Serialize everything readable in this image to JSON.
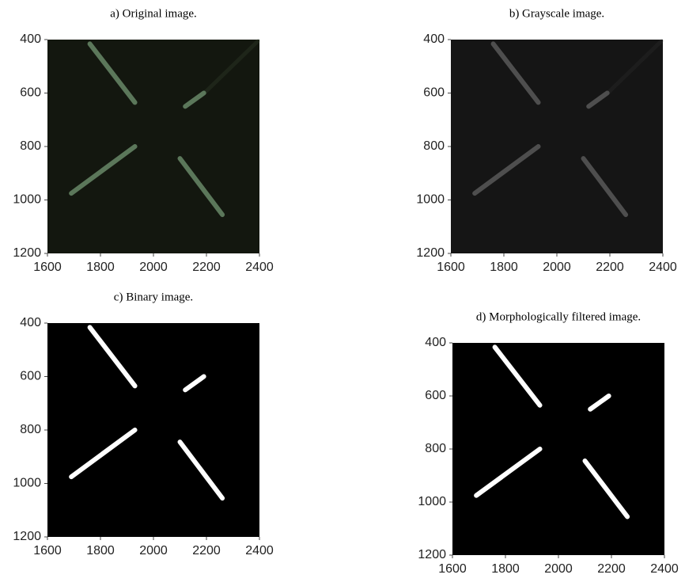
{
  "chart_data": [
    {
      "type": "image",
      "title": "a) Original image.",
      "xlim": [
        1600,
        2400
      ],
      "ylim": [
        400,
        1200
      ],
      "y_reversed": true,
      "xticks": [
        1600,
        1800,
        2000,
        2200,
        2400
      ],
      "yticks": [
        400,
        600,
        800,
        1000,
        1200
      ],
      "background": "#13170f",
      "color": "#5b775a"
    },
    {
      "type": "image",
      "title": "b) Grayscale image.",
      "xlim": [
        1600,
        2400
      ],
      "ylim": [
        400,
        1200
      ],
      "y_reversed": true,
      "xticks": [
        1600,
        1800,
        2000,
        2200,
        2400
      ],
      "yticks": [
        400,
        600,
        800,
        1000,
        1200
      ],
      "background": "#151515",
      "color": "#4e4e4e"
    },
    {
      "type": "image",
      "title": "c) Binary image.",
      "xlim": [
        1600,
        2400
      ],
      "ylim": [
        400,
        1200
      ],
      "y_reversed": true,
      "xticks": [
        1600,
        1800,
        2000,
        2200,
        2400
      ],
      "yticks": [
        400,
        600,
        800,
        1000,
        1200
      ],
      "background": "#000000",
      "color": "#ffffff"
    },
    {
      "type": "image",
      "title": "d) Morphologically filtered image.",
      "xlim": [
        1600,
        2400
      ],
      "ylim": [
        400,
        1200
      ],
      "y_reversed": true,
      "xticks": [
        1600,
        1800,
        2000,
        2200,
        2400
      ],
      "yticks": [
        400,
        600,
        800,
        1000,
        1200
      ],
      "background": "#000000",
      "color": "#ffffff"
    }
  ]
}
